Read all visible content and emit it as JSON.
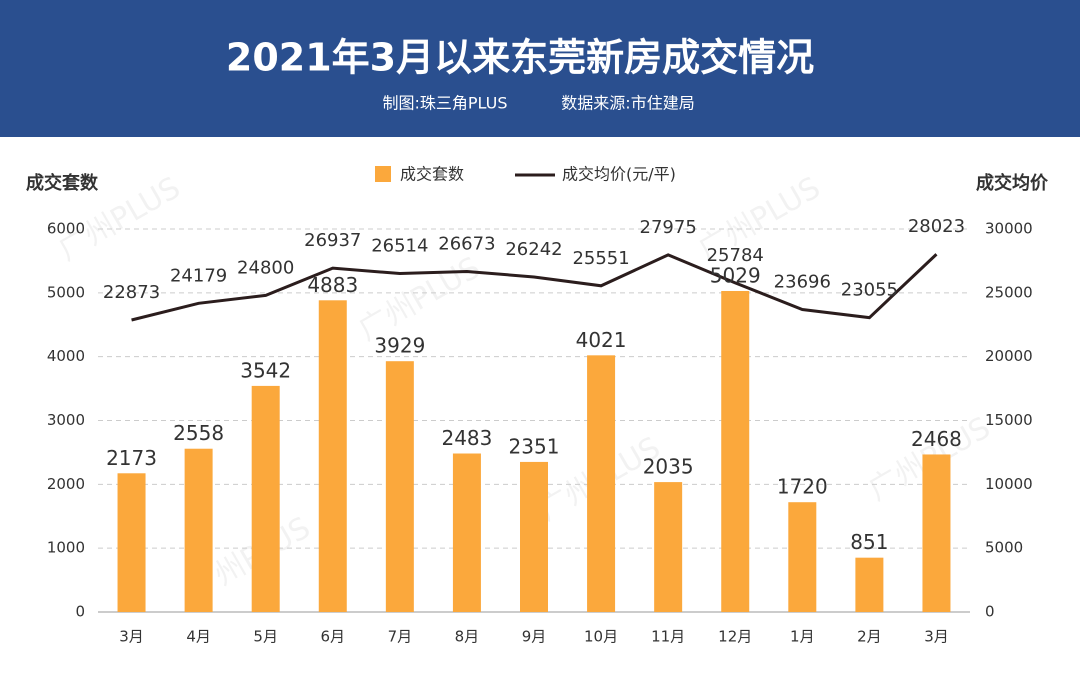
{
  "chart_data": {
    "type": "bar-line",
    "title": "2021年3月以来东莞新房成交情况",
    "credit": "制图:珠三角PLUS",
    "source": "数据来源:市住建局",
    "watermark": "广州PLUS",
    "ylabel": "成交套数",
    "y2label": "成交均价",
    "categories": [
      "3月",
      "4月",
      "5月",
      "6月",
      "7月",
      "8月",
      "9月",
      "10月",
      "11月",
      "12月",
      "1月",
      "2月",
      "3月"
    ],
    "series": [
      {
        "name": "成交套数",
        "type": "bar",
        "color": "#fba83c",
        "values": [
          2173,
          2558,
          3542,
          4883,
          3929,
          2483,
          2351,
          4021,
          2035,
          5029,
          1720,
          851,
          2468
        ]
      },
      {
        "name": "成交均价(元/平)",
        "type": "line",
        "axis": "y2",
        "color": "#2b1d1d",
        "values": [
          22873,
          24179,
          24800,
          26937,
          26514,
          26673,
          26242,
          25551,
          27975,
          25784,
          23696,
          23055,
          28023
        ]
      }
    ],
    "ylim": [
      0,
      6000
    ],
    "yticks": [
      0,
      1000,
      2000,
      3000,
      4000,
      5000,
      6000
    ],
    "y2lim": [
      0,
      30000
    ],
    "y2ticks": [
      0,
      5000,
      10000,
      15000,
      20000,
      25000,
      30000
    ],
    "grid": true,
    "legend": "top"
  }
}
